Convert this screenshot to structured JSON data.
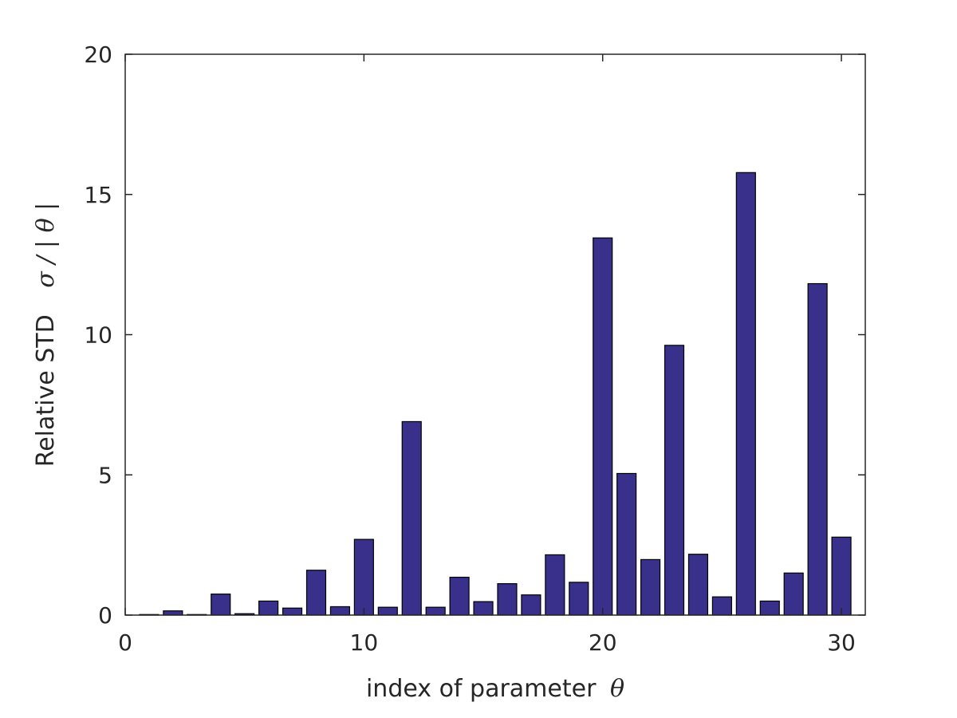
{
  "chart_data": {
    "type": "bar",
    "x": [
      1,
      2,
      3,
      4,
      5,
      6,
      7,
      8,
      9,
      10,
      11,
      12,
      13,
      14,
      15,
      16,
      17,
      18,
      19,
      20,
      21,
      22,
      23,
      24,
      25,
      26,
      27,
      28,
      29,
      30
    ],
    "values": [
      0.02,
      0.15,
      0.02,
      0.75,
      0.05,
      0.5,
      0.25,
      1.6,
      0.3,
      2.7,
      0.28,
      6.9,
      0.28,
      1.35,
      0.48,
      1.12,
      0.72,
      2.15,
      1.17,
      13.45,
      5.05,
      1.98,
      9.62,
      2.17,
      0.65,
      15.78,
      0.5,
      1.5,
      11.82,
      2.78
    ],
    "bar_color": "#38308a",
    "xlim": [
      0,
      31
    ],
    "ylim": [
      0,
      20
    ],
    "xticks": [
      "0",
      "10",
      "20",
      "30"
    ],
    "yticks": [
      "0",
      "5",
      "10",
      "15",
      "20"
    ],
    "xlabel": {
      "text": "index of parameter",
      "symbol": "θ"
    },
    "ylabel": {
      "text": "Relative STD",
      "symbol": "σ / | θ |"
    },
    "grid": false,
    "legend": "none"
  }
}
